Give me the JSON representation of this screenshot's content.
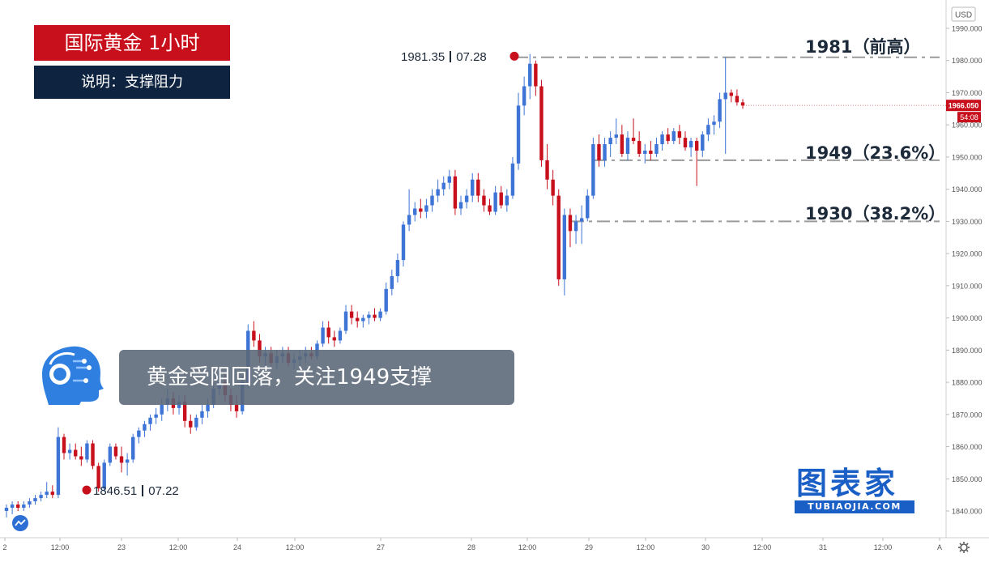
{
  "header": {
    "title": "国际黄金  1小时",
    "subtitle": "说明：支撑阻力"
  },
  "banner": {
    "text": "黄金受阻回落，关注1949支撑"
  },
  "logo": {
    "main": "图表家",
    "sub": "TUBIAOJIA.COM"
  },
  "colors": {
    "up": "#3d74d6",
    "down": "#c8101c",
    "title_bg": "#c8101c",
    "sub_bg": "#0e2340",
    "level_line": "#9a9a9a",
    "logo": "#1a5fc6"
  },
  "chart_data": {
    "type": "candlestick",
    "currency": "USD",
    "y_range": [
      1834,
      1997
    ],
    "y_ticks": [
      1840,
      1850,
      1860,
      1870,
      1880,
      1890,
      1900,
      1910,
      1920,
      1930,
      1940,
      1950,
      1960,
      1970,
      1980,
      1990
    ],
    "y_tick_labels": [
      "1840.000",
      "1850.000",
      "1860.000",
      "1870.000",
      "1880.000",
      "1890.000",
      "1900.000",
      "1910.000",
      "1920.000",
      "1930.000",
      "1940.000",
      "1950.000",
      "1960.000",
      "1970.000",
      "1980.000",
      "1990.000"
    ],
    "x_ticks": [
      "2",
      "12:00",
      "23",
      "12:00",
      "24",
      "12:00",
      "27",
      "28",
      "12:00",
      "29",
      "12:00",
      "30",
      "12:00",
      "31",
      "12:00",
      "A"
    ],
    "last_price": {
      "value": 1966.05,
      "label": "1966.050",
      "countdown": "54:08"
    },
    "levels": [
      {
        "value": 1981,
        "label": "1981（前高）"
      },
      {
        "value": 1949,
        "label": "1949（23.6%）"
      },
      {
        "value": 1930,
        "label": "1930（38.2%）"
      }
    ],
    "markers": [
      {
        "value": 1981.35,
        "price_label": "1981.35",
        "time_label": "07.28",
        "type": "high"
      },
      {
        "value": 1846.51,
        "price_label": "1846.51",
        "time_label": "07.22",
        "type": "low"
      }
    ],
    "candles": [
      [
        1840,
        1842,
        1838,
        1841
      ],
      [
        1841,
        1843,
        1839,
        1842
      ],
      [
        1842,
        1843,
        1840,
        1841
      ],
      [
        1841,
        1843,
        1840,
        1842
      ],
      [
        1842,
        1844,
        1841,
        1843
      ],
      [
        1843,
        1845,
        1842,
        1844
      ],
      [
        1844,
        1846,
        1843,
        1845
      ],
      [
        1845,
        1849,
        1844,
        1846
      ],
      [
        1846,
        1848,
        1844,
        1845
      ],
      [
        1845,
        1866,
        1844,
        1863
      ],
      [
        1863,
        1864,
        1856,
        1858
      ],
      [
        1858,
        1861,
        1856,
        1859
      ],
      [
        1859,
        1861,
        1856,
        1857
      ],
      [
        1857,
        1860,
        1854,
        1856
      ],
      [
        1856,
        1862,
        1855,
        1861
      ],
      [
        1861,
        1862,
        1853,
        1854
      ],
      [
        1854,
        1855,
        1846,
        1847
      ],
      [
        1847,
        1856,
        1846,
        1855
      ],
      [
        1855,
        1861,
        1854,
        1860
      ],
      [
        1860,
        1861,
        1856,
        1857
      ],
      [
        1857,
        1860,
        1852,
        1855
      ],
      [
        1855,
        1858,
        1851,
        1856
      ],
      [
        1856,
        1864,
        1855,
        1863
      ],
      [
        1863,
        1866,
        1861,
        1865
      ],
      [
        1865,
        1868,
        1863,
        1867
      ],
      [
        1867,
        1870,
        1865,
        1869
      ],
      [
        1869,
        1872,
        1867,
        1870
      ],
      [
        1870,
        1875,
        1868,
        1873
      ],
      [
        1873,
        1878,
        1871,
        1875
      ],
      [
        1875,
        1877,
        1870,
        1872
      ],
      [
        1872,
        1876,
        1870,
        1874
      ],
      [
        1874,
        1876,
        1866,
        1868
      ],
      [
        1868,
        1870,
        1864,
        1866
      ],
      [
        1866,
        1870,
        1865,
        1869
      ],
      [
        1869,
        1873,
        1867,
        1871
      ],
      [
        1871,
        1875,
        1869,
        1873
      ],
      [
        1873,
        1880,
        1872,
        1878
      ],
      [
        1878,
        1883,
        1876,
        1880
      ],
      [
        1880,
        1883,
        1874,
        1876
      ],
      [
        1876,
        1878,
        1871,
        1873
      ],
      [
        1873,
        1876,
        1869,
        1871
      ],
      [
        1871,
        1882,
        1870,
        1880
      ],
      [
        1880,
        1898,
        1878,
        1896
      ],
      [
        1896,
        1899,
        1891,
        1893
      ],
      [
        1893,
        1895,
        1886,
        1888
      ],
      [
        1888,
        1891,
        1885,
        1889
      ],
      [
        1889,
        1891,
        1885,
        1886
      ],
      [
        1886,
        1890,
        1884,
        1888
      ],
      [
        1888,
        1891,
        1886,
        1889
      ],
      [
        1889,
        1891,
        1885,
        1886
      ],
      [
        1886,
        1889,
        1884,
        1887
      ],
      [
        1887,
        1890,
        1885,
        1888
      ],
      [
        1888,
        1891,
        1886,
        1889
      ],
      [
        1889,
        1891,
        1887,
        1888
      ],
      [
        1888,
        1893,
        1887,
        1892
      ],
      [
        1892,
        1899,
        1891,
        1897
      ],
      [
        1897,
        1899,
        1892,
        1894
      ],
      [
        1894,
        1896,
        1891,
        1893
      ],
      [
        1893,
        1897,
        1892,
        1896
      ],
      [
        1896,
        1904,
        1895,
        1902
      ],
      [
        1902,
        1904,
        1898,
        1900
      ],
      [
        1900,
        1902,
        1897,
        1899
      ],
      [
        1899,
        1901,
        1897,
        1900
      ],
      [
        1900,
        1902,
        1898,
        1901
      ],
      [
        1901,
        1903,
        1899,
        1900
      ],
      [
        1900,
        1903,
        1899,
        1902
      ],
      [
        1902,
        1911,
        1901,
        1909
      ],
      [
        1909,
        1915,
        1907,
        1913
      ],
      [
        1913,
        1920,
        1911,
        1918
      ],
      [
        1918,
        1930,
        1916,
        1929
      ],
      [
        1929,
        1940,
        1927,
        1932
      ],
      [
        1932,
        1936,
        1930,
        1934
      ],
      [
        1934,
        1937,
        1931,
        1933
      ],
      [
        1933,
        1937,
        1931,
        1935
      ],
      [
        1935,
        1940,
        1933,
        1938
      ],
      [
        1938,
        1943,
        1936,
        1940
      ],
      [
        1940,
        1944,
        1938,
        1942
      ],
      [
        1942,
        1946,
        1940,
        1944
      ],
      [
        1944,
        1946,
        1932,
        1934
      ],
      [
        1934,
        1938,
        1932,
        1936
      ],
      [
        1936,
        1940,
        1934,
        1938
      ],
      [
        1938,
        1945,
        1936,
        1943
      ],
      [
        1943,
        1945,
        1936,
        1938
      ],
      [
        1938,
        1940,
        1933,
        1935
      ],
      [
        1935,
        1937,
        1932,
        1933
      ],
      [
        1933,
        1941,
        1932,
        1939
      ],
      [
        1939,
        1941,
        1934,
        1935
      ],
      [
        1935,
        1940,
        1933,
        1938
      ],
      [
        1938,
        1950,
        1937,
        1948
      ],
      [
        1948,
        1970,
        1946,
        1966
      ],
      [
        1966,
        1975,
        1963,
        1972
      ],
      [
        1972,
        1982,
        1968,
        1979
      ],
      [
        1979,
        1980,
        1969,
        1972
      ],
      [
        1972,
        1974,
        1947,
        1949
      ],
      [
        1949,
        1954,
        1940,
        1943
      ],
      [
        1943,
        1946,
        1935,
        1938
      ],
      [
        1938,
        1940,
        1910,
        1912
      ],
      [
        1912,
        1934,
        1907,
        1932
      ],
      [
        1932,
        1934,
        1922,
        1927
      ],
      [
        1927,
        1932,
        1923,
        1930
      ],
      [
        1930,
        1935,
        1923,
        1931
      ],
      [
        1931,
        1940,
        1930,
        1938
      ],
      [
        1938,
        1956,
        1937,
        1954
      ],
      [
        1954,
        1957,
        1947,
        1949
      ],
      [
        1949,
        1956,
        1947,
        1954
      ],
      [
        1954,
        1958,
        1950,
        1956
      ],
      [
        1956,
        1962,
        1954,
        1957
      ],
      [
        1957,
        1960,
        1950,
        1951
      ],
      [
        1951,
        1958,
        1949,
        1956
      ],
      [
        1956,
        1962,
        1954,
        1955
      ],
      [
        1955,
        1958,
        1950,
        1951
      ],
      [
        1951,
        1954,
        1948,
        1952
      ],
      [
        1952,
        1955,
        1949,
        1951
      ],
      [
        1951,
        1956,
        1950,
        1954
      ],
      [
        1954,
        1958,
        1952,
        1957
      ],
      [
        1957,
        1959,
        1954,
        1955
      ],
      [
        1955,
        1959,
        1954,
        1958
      ],
      [
        1958,
        1960,
        1954,
        1956
      ],
      [
        1956,
        1958,
        1952,
        1953
      ],
      [
        1953,
        1956,
        1950,
        1955
      ],
      [
        1955,
        1956,
        1941,
        1952
      ],
      [
        1952,
        1958,
        1950,
        1957
      ],
      [
        1957,
        1962,
        1955,
        1960
      ],
      [
        1960,
        1963,
        1957,
        1961
      ],
      [
        1961,
        1970,
        1959,
        1968
      ],
      [
        1968,
        1981,
        1951,
        1970
      ],
      [
        1970,
        1971,
        1967,
        1969
      ],
      [
        1969,
        1971,
        1966,
        1967
      ],
      [
        1967,
        1968,
        1965,
        1966
      ]
    ]
  }
}
